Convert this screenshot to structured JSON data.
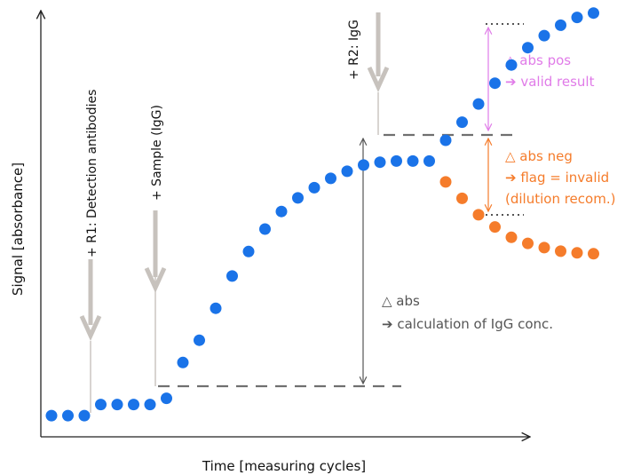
{
  "chart_data": {
    "type": "scatter",
    "xlabel": "Time [measuring cycles]",
    "ylabel": "Signal [absorbance]",
    "colors": {
      "measured": "#1a73e8",
      "negative_branch": "#f57c2b",
      "positive_annotation": "#e07be8",
      "negative_annotation": "#f57c2b",
      "reagent_arrow": "#c7c2bd",
      "baseline": "#707070",
      "axis": "#222222"
    },
    "series": [
      {
        "key": "measured",
        "x": [
          1,
          2,
          3,
          4,
          5,
          6,
          7,
          8,
          9,
          10,
          11,
          12,
          13,
          14,
          15,
          16,
          17,
          18,
          19,
          20,
          21,
          22,
          23,
          24
        ],
        "y": [
          0.4,
          0.4,
          0.4,
          1.68,
          1.68,
          1.68,
          1.68,
          2.4,
          6.53,
          9.11,
          12.8,
          16.52,
          19.35,
          21.95,
          23.98,
          25.55,
          26.73,
          27.8,
          28.63,
          29.34,
          29.67,
          29.8,
          29.8,
          29.8
        ],
        "color_key": "measured"
      },
      {
        "key": "positive",
        "x": [
          25,
          26,
          27,
          28,
          29,
          30,
          31,
          32,
          33,
          34
        ],
        "y": [
          32.2,
          34.3,
          36.4,
          38.8,
          40.9,
          42.9,
          44.3,
          45.5,
          46.4,
          46.9
        ],
        "color_key": "measured"
      },
      {
        "key": "negative",
        "x": [
          25,
          26,
          27,
          28,
          29,
          30,
          31,
          32,
          33,
          34
        ],
        "y": [
          27.4,
          25.5,
          23.6,
          22.2,
          21.0,
          20.3,
          19.8,
          19.4,
          19.2,
          19.1
        ],
        "color_key": "negative_branch"
      }
    ],
    "events": [
      {
        "label": "+ R1: Detection antibodies",
        "x": 4
      },
      {
        "label": "+ Sample (IgG)",
        "x": 7
      },
      {
        "label": "+ R2: IgG",
        "x": 24
      }
    ],
    "annotations": {
      "delta_abs": {
        "line1": "△ abs",
        "line2": "➔ calculation of IgG conc."
      },
      "delta_abs_pos": {
        "line1": "△ abs pos",
        "line2": "➔ valid result"
      },
      "delta_abs_neg": {
        "line1": "△ abs neg",
        "line2": "➔ flag = invalid",
        "line3": "(dilution recom.)"
      }
    }
  }
}
